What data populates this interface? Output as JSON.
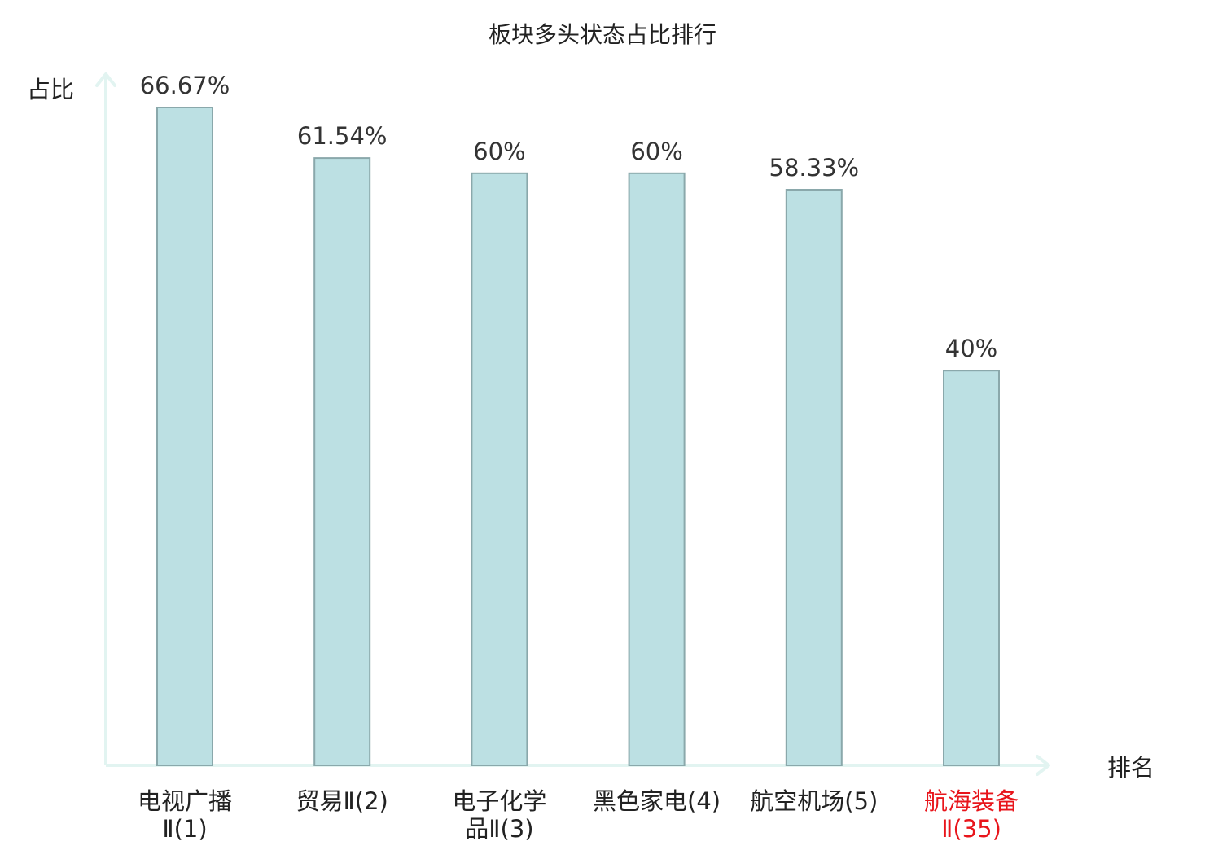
{
  "chart_data": {
    "type": "bar",
    "title": "板块多头状态占比排行",
    "ylabel": "占比",
    "xlabel": "排名",
    "categories": [
      [
        "电视广播",
        "Ⅱ(1)"
      ],
      [
        "贸易Ⅱ(2)"
      ],
      [
        "电子化学",
        "品Ⅱ(3)"
      ],
      [
        "黑色家电(4)"
      ],
      [
        "航空机场(5)"
      ],
      [
        "航海装备",
        "Ⅱ(35)"
      ]
    ],
    "values": [
      66.67,
      61.54,
      60,
      60,
      58.33,
      40
    ],
    "value_labels": [
      "66.67%",
      "61.54%",
      "60%",
      "60%",
      "58.33%",
      "40%"
    ],
    "highlight_index": 5,
    "ylim": [
      0,
      70
    ],
    "grid": false,
    "colors": {
      "bar_fill": "#bce0e3",
      "bar_stroke": "#8aa8ab",
      "axis": "#e2f4f1",
      "text": "#333333",
      "title": "#222222",
      "highlight": "#e8151b"
    }
  }
}
